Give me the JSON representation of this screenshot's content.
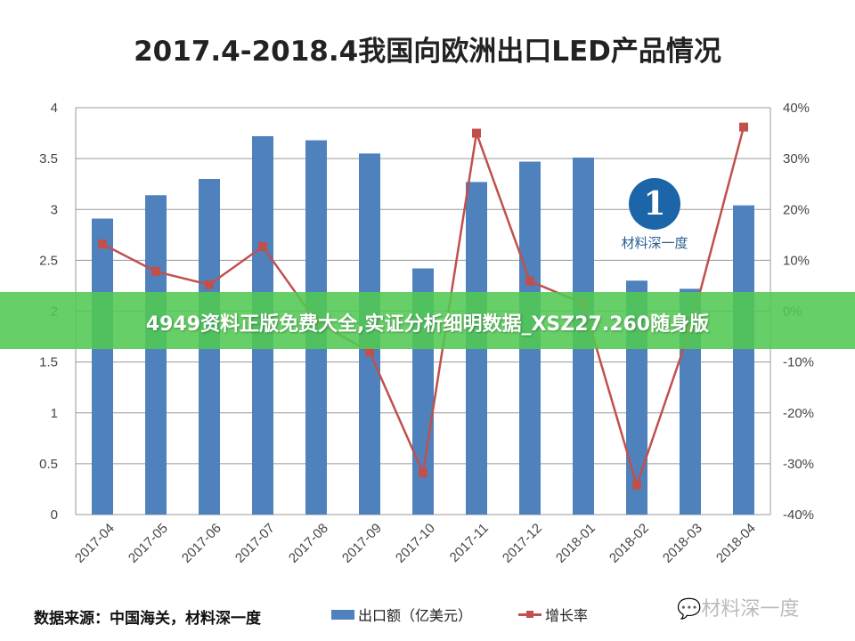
{
  "chart_data": {
    "type": "bar+line",
    "title": "2017.4-2018.4我国向欧洲出口LED产品情况",
    "categories": [
      "2017-04",
      "2017-05",
      "2017-06",
      "2017-07",
      "2017-08",
      "2017-09",
      "2017-10",
      "2017-11",
      "2017-12",
      "2018-01",
      "2018-02",
      "2018-03",
      "2018-04"
    ],
    "series": [
      {
        "name": "出口额（亿美元）",
        "type": "bar",
        "axis": "left",
        "color": "#4f81bd",
        "values": [
          2.91,
          3.14,
          3.3,
          3.72,
          3.68,
          3.55,
          2.42,
          3.27,
          3.47,
          3.51,
          2.3,
          2.22,
          3.04
        ]
      },
      {
        "name": "增长率",
        "type": "line",
        "axis": "right",
        "color": "#c0504d",
        "values": [
          13.2,
          7.8,
          5.2,
          12.7,
          -2,
          -8,
          -31.8,
          35.0,
          5.9,
          1.5,
          -34.2,
          -3.5,
          36.2
        ]
      }
    ],
    "left_axis": {
      "ylim": [
        0,
        4
      ],
      "ticks": [
        "0",
        "0.5",
        "1",
        "1.5",
        "2",
        "2.5",
        "3",
        "3.5",
        "4"
      ]
    },
    "right_axis": {
      "ylim": [
        -40,
        40
      ],
      "ticks": [
        "-40%",
        "-30%",
        "-20%",
        "-10%",
        "0%",
        "10%",
        "20%",
        "30%",
        "40%"
      ]
    },
    "grid": true,
    "legend": "bottom"
  },
  "footer": {
    "source": "数据来源：中国海关，材料深一度"
  },
  "watermark": {
    "logo_text": "材料深一度",
    "corner_text": "材料深一度"
  },
  "banner": {
    "text": "4949资料正版免费大全,实证分析细明数据_XSZ27.260随身版"
  }
}
